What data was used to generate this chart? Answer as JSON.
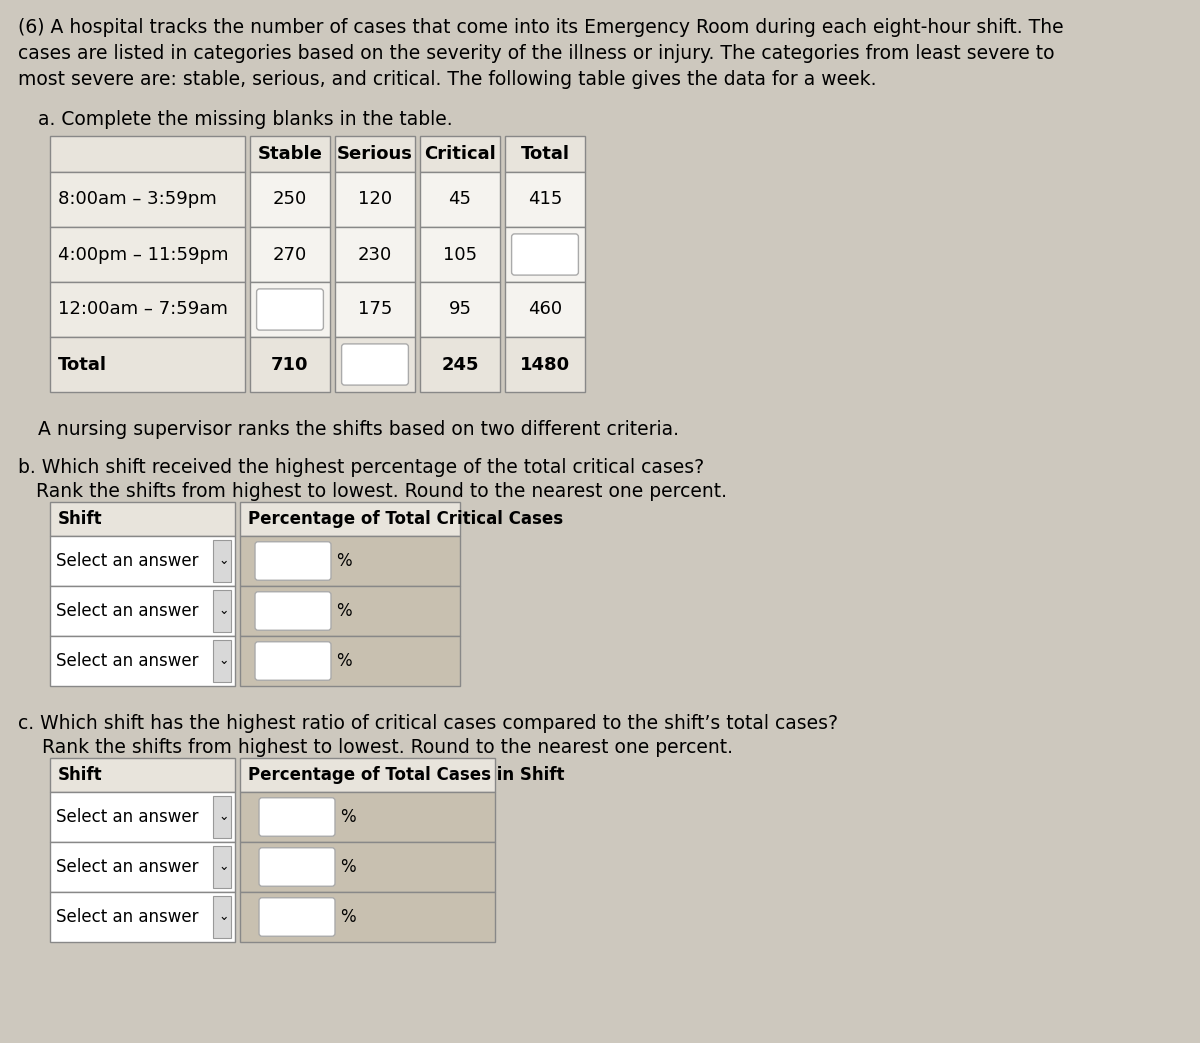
{
  "bg_color": "#cdc8be",
  "title_text_lines": [
    "(6) A hospital tracks the number of cases that come into its Emergency Room during each eight-hour shift. The",
    "cases are listed in categories based on the severity of the illness or injury. The categories from least severe to",
    "most severe are: stable, serious, and critical. The following table gives the data for a week."
  ],
  "part_a_label": "a. Complete the missing blanks in the table.",
  "table_a_headers": [
    "",
    "Stable",
    "Serious",
    "Critical",
    "Total"
  ],
  "table_a_rows": [
    [
      "8:00am – 3:59pm",
      "250",
      "120",
      "45",
      "415"
    ],
    [
      "4:00pm – 11:59pm",
      "270",
      "230",
      "105",
      "BLANK"
    ],
    [
      "12:00am – 7:59am",
      "BLANK",
      "175",
      "95",
      "460"
    ],
    [
      "Total",
      "710",
      "BLANK",
      "245",
      "1480"
    ]
  ],
  "nursing_text": "A nursing supervisor ranks the shifts based on two different criteria.",
  "part_b_label_1": "b. Which shift received the highest percentage of the total critical cases?",
  "part_b_label_2": "   Rank the shifts from highest to lowest. Round to the nearest one percent.",
  "table_b_header": [
    "Shift",
    "Percentage of Total Critical Cases"
  ],
  "part_c_label_1": "c. Which shift has the highest ratio of critical cases compared to the shift’s total cases?",
  "part_c_label_2": "    Rank the shifts from highest to lowest. Round to the nearest one percent.",
  "table_c_header": [
    "Shift",
    "Percentage of Total Cases in Shift"
  ],
  "font_size_title": 13.5,
  "font_size_label": 13.5,
  "font_size_table": 13,
  "font_size_small": 12
}
